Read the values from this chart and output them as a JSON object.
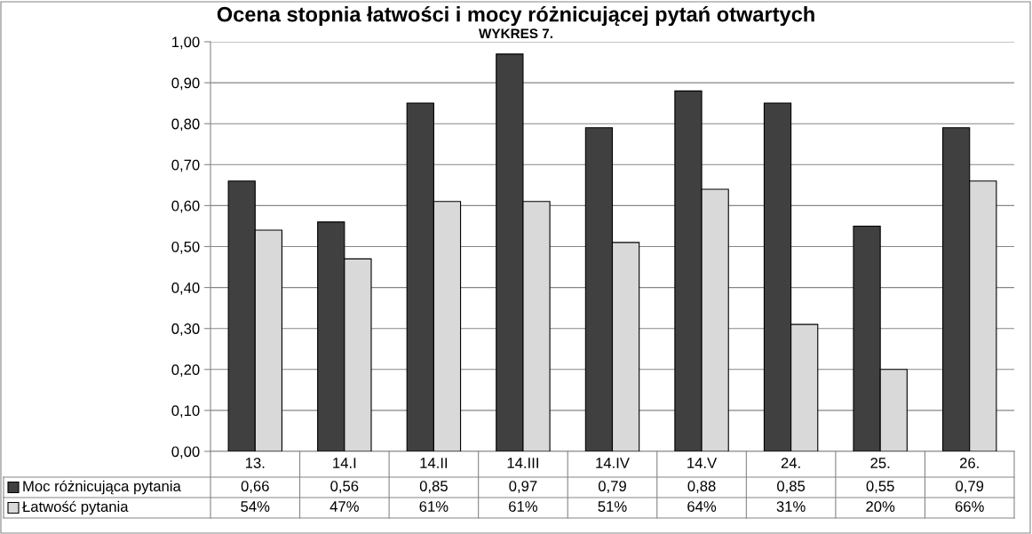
{
  "chart_data": {
    "type": "bar",
    "title": "Ocena stopnia łatwości i mocy różnicującej pytań otwartych",
    "subtitle": "WYKRES 7.",
    "categories": [
      "13.",
      "14.I",
      "14.II",
      "14.III",
      "14.IV",
      "14.V",
      "24.",
      "25.",
      "26."
    ],
    "series": [
      {
        "name": "Moc różnicująca pytania",
        "color": "#404040",
        "values": [
          0.66,
          0.56,
          0.85,
          0.97,
          0.79,
          0.88,
          0.85,
          0.55,
          0.79
        ],
        "value_labels": [
          "0,66",
          "0,56",
          "0,85",
          "0,97",
          "0,79",
          "0,88",
          "0,85",
          "0,55",
          "0,79"
        ]
      },
      {
        "name": "Łatwość pytania",
        "color": "#d9d9d9",
        "values": [
          0.54,
          0.47,
          0.61,
          0.61,
          0.51,
          0.64,
          0.31,
          0.2,
          0.66
        ],
        "value_labels": [
          "54%",
          "47%",
          "61%",
          "61%",
          "51%",
          "64%",
          "31%",
          "20%",
          "66%"
        ]
      }
    ],
    "ylim": [
      0,
      1
    ],
    "yticks": [
      {
        "value": 0,
        "label": "0,00"
      },
      {
        "value": 0.1,
        "label": "0,10"
      },
      {
        "value": 0.2,
        "label": "0,20"
      },
      {
        "value": 0.3,
        "label": "0,30"
      },
      {
        "value": 0.4,
        "label": "0,40"
      },
      {
        "value": 0.5,
        "label": "0,50"
      },
      {
        "value": 0.6,
        "label": "0,60"
      },
      {
        "value": 0.7,
        "label": "0,70"
      },
      {
        "value": 0.8,
        "label": "0,80"
      },
      {
        "value": 0.9,
        "label": "0,90"
      },
      {
        "value": 1,
        "label": "1,00"
      }
    ],
    "grid": "y",
    "legend": "bottom left"
  }
}
